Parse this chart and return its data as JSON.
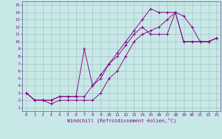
{
  "title": "",
  "xlabel": "Windchill (Refroidissement éolien,°C)",
  "ylabel": "",
  "bg_color": "#c8e8e8",
  "grid_color": "#b0c8c8",
  "line_color": "#880088",
  "xlim": [
    -0.5,
    23.5
  ],
  "ylim": [
    0.5,
    15.5
  ],
  "xticks": [
    0,
    1,
    2,
    3,
    4,
    5,
    6,
    7,
    8,
    9,
    10,
    11,
    12,
    13,
    14,
    15,
    16,
    17,
    18,
    19,
    20,
    21,
    22,
    23
  ],
  "yticks": [
    1,
    2,
    3,
    4,
    5,
    6,
    7,
    8,
    9,
    10,
    11,
    12,
    13,
    14,
    15
  ],
  "line1_x": [
    0,
    1,
    2,
    3,
    4,
    5,
    6,
    7,
    8,
    9,
    10,
    11,
    12,
    13,
    14,
    15,
    16,
    17,
    18,
    19,
    20,
    21,
    22,
    23
  ],
  "line1_y": [
    3,
    2,
    2,
    1.5,
    2,
    2,
    2,
    2,
    2,
    3,
    5,
    6,
    8,
    10,
    11,
    11.5,
    12,
    13,
    14,
    10,
    10,
    10,
    10,
    10.5
  ],
  "line2_x": [
    0,
    1,
    2,
    3,
    4,
    5,
    6,
    7,
    8,
    9,
    10,
    11,
    12,
    13,
    14,
    15,
    16,
    17,
    18,
    19,
    20,
    21,
    22,
    23
  ],
  "line2_y": [
    3,
    2,
    2,
    2,
    2.5,
    2.5,
    2.5,
    9,
    4,
    5,
    7,
    8,
    9.5,
    11,
    12,
    11,
    11,
    11,
    14,
    10,
    10,
    10,
    10,
    10.5
  ],
  "line3_x": [
    0,
    1,
    2,
    3,
    4,
    5,
    6,
    7,
    8,
    9,
    10,
    11,
    12,
    13,
    14,
    15,
    16,
    17,
    18,
    19,
    20,
    21,
    22,
    23
  ],
  "line3_y": [
    3,
    2,
    2,
    2,
    2.5,
    2.5,
    2.5,
    2.5,
    4,
    5.5,
    7,
    8.5,
    10,
    11.5,
    13,
    14.5,
    14,
    14,
    14,
    13.5,
    12,
    10,
    10,
    10.5
  ]
}
